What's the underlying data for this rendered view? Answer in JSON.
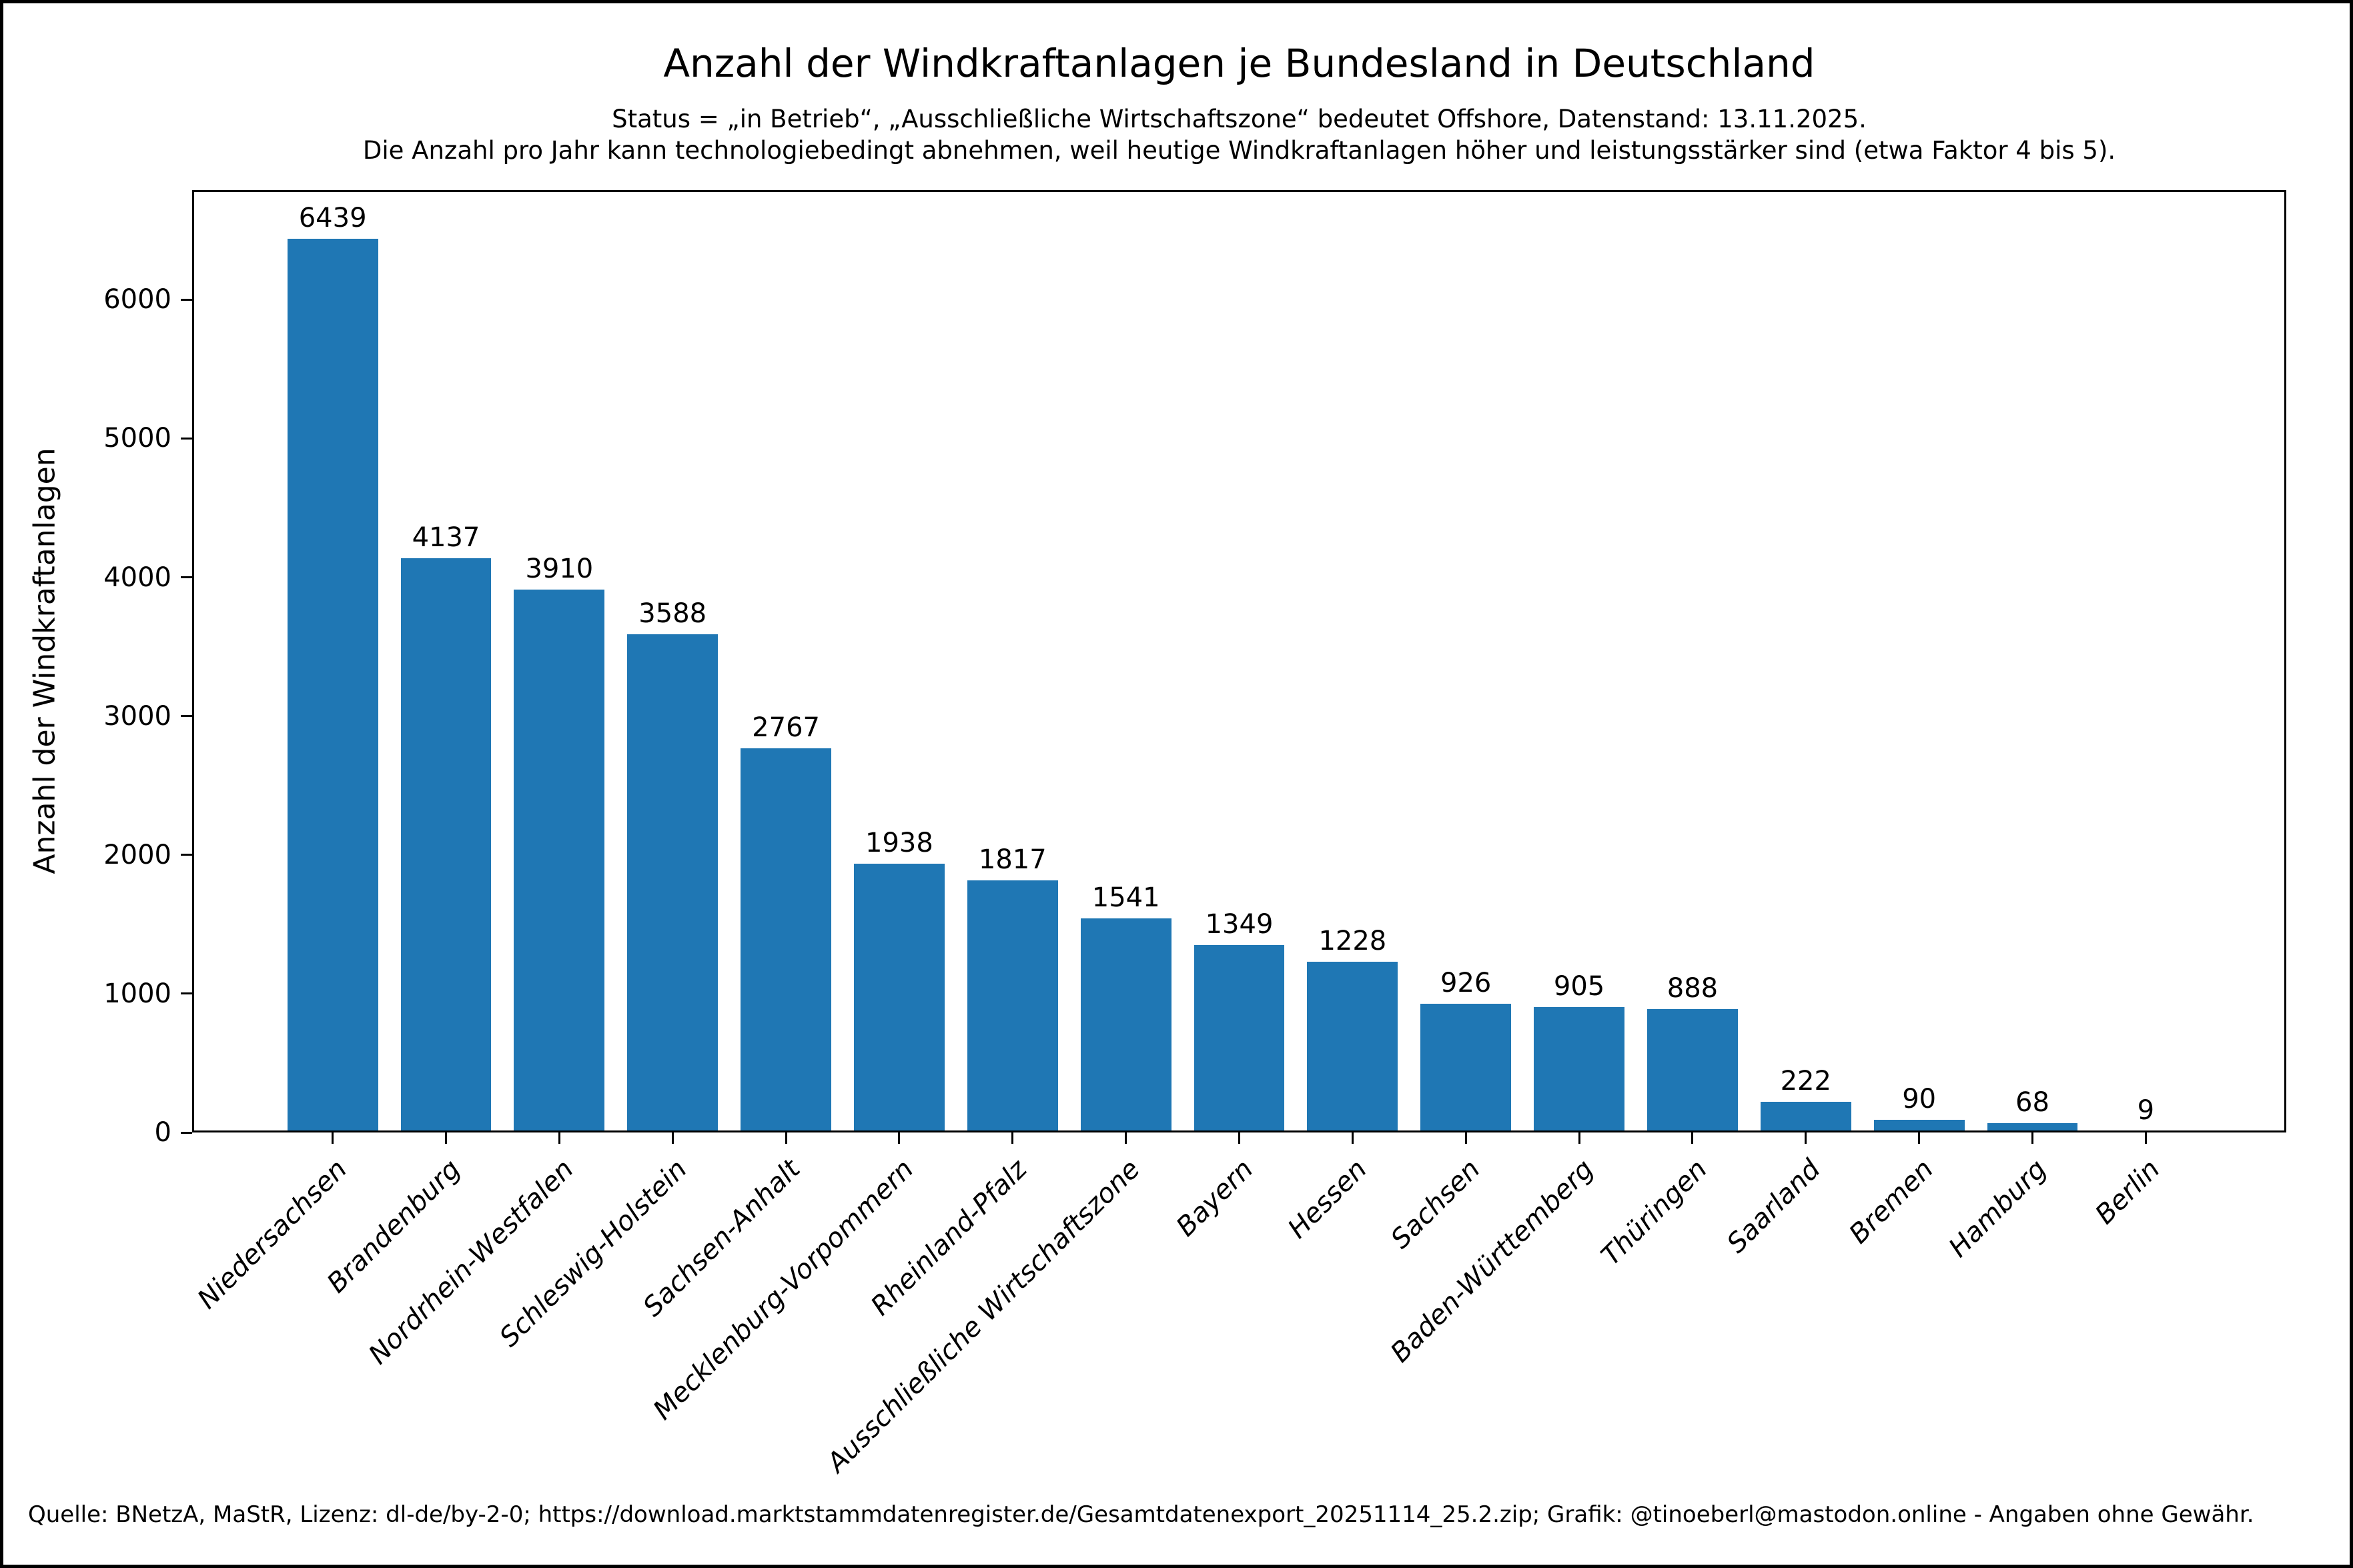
{
  "chart_data": {
    "type": "bar",
    "title": "Anzahl der Windkraftanlagen je Bundesland in Deutschland",
    "subtitle_line1": "Status = „in Betrieb“, „Ausschließliche Wirtschaftszone“ bedeutet Offshore, Datenstand: 13.11.2025.",
    "subtitle_line2": "Die Anzahl pro Jahr kann technologiebedingt abnehmen, weil heutige Windkraftanlagen höher und leistungsstärker sind (etwa Faktor 4 bis 5).",
    "ylabel": "Anzahl der Windkraftanlagen",
    "xlabel": "",
    "categories": [
      "Niedersachsen",
      "Brandenburg",
      "Nordrhein-Westfalen",
      "Schleswig-Holstein",
      "Sachsen-Anhalt",
      "Mecklenburg-Vorpommern",
      "Rheinland-Pfalz",
      "Ausschließliche Wirtschaftszone",
      "Bayern",
      "Hessen",
      "Sachsen",
      "Baden-Württemberg",
      "Thüringen",
      "Saarland",
      "Bremen",
      "Hamburg",
      "Berlin"
    ],
    "values": [
      6439,
      4137,
      3910,
      3588,
      2767,
      1938,
      1817,
      1541,
      1349,
      1228,
      926,
      905,
      888,
      222,
      90,
      68,
      9
    ],
    "yticks": [
      0,
      1000,
      2000,
      3000,
      4000,
      5000,
      6000
    ],
    "ylim": [
      0,
      6790
    ],
    "bar_labels_shown": true,
    "grid": false,
    "legend": "none",
    "colors": {
      "bar": "#1f77b4",
      "text": "#000000",
      "background": "#ffffff",
      "frame": "#000000"
    },
    "source_note": "Quelle: BNetzA, MaStR, Lizenz: dl-de/by-2-0; https://download.marktstammdatenregister.de/Gesamtdatenexport_20251114_25.2.zip; Grafik: @tinoeberl@mastodon.online - Angaben ohne Gewähr."
  }
}
